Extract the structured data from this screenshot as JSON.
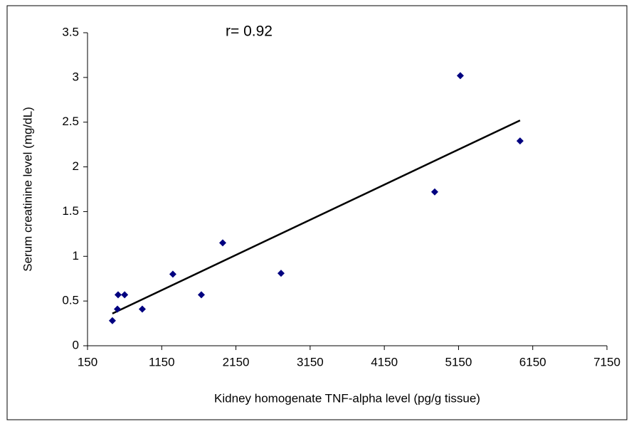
{
  "chart_data": {
    "type": "scatter",
    "x_label": "Kidney homogenate TNF-alpha level (pg/g tissue)",
    "y_label": "Serum creatinine level (mg/dL)",
    "annotation": "r= 0.92",
    "x": [
      485,
      562,
      553,
      650,
      888,
      1300,
      1684,
      1972,
      2758,
      4829,
      5174,
      5979
    ],
    "values": [
      0.28,
      0.57,
      0.41,
      0.57,
      0.41,
      0.8,
      0.57,
      1.15,
      0.81,
      1.72,
      3.02,
      2.29
    ],
    "color": "#000080",
    "trendline": {
      "x": [
        485,
        5979
      ],
      "y": [
        0.36,
        2.52
      ],
      "color": "#000000"
    },
    "xlim": [
      150,
      7150
    ],
    "xticks": [
      150,
      1150,
      2150,
      3150,
      4150,
      5150,
      6150,
      7150
    ],
    "ylim": [
      0,
      3.5
    ],
    "yticks": [
      0,
      0.5,
      1,
      1.5,
      2,
      2.5,
      3,
      3.5
    ]
  }
}
